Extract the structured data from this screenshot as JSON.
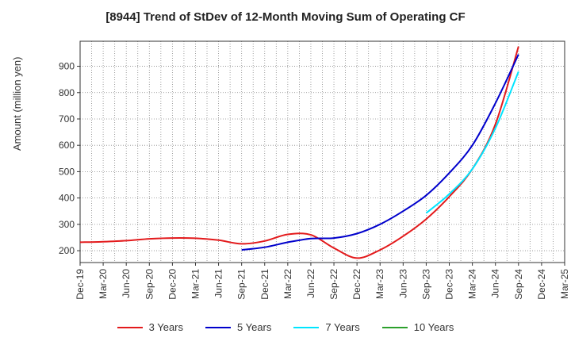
{
  "chart_data": {
    "type": "line",
    "title": "[8944]  Trend of StDev of 12-Month Moving Sum of Operating CF",
    "ylabel": "Amount (million yen)",
    "xlabel": "",
    "ylim": [
      155,
      995
    ],
    "yticks": [
      200,
      300,
      400,
      500,
      600,
      700,
      800,
      900
    ],
    "categories": [
      "Dec-19",
      "Mar-20",
      "Jun-20",
      "Sep-20",
      "Dec-20",
      "Mar-21",
      "Jun-21",
      "Sep-21",
      "Dec-21",
      "Mar-22",
      "Jun-22",
      "Sep-22",
      "Dec-22",
      "Mar-23",
      "Jun-23",
      "Sep-23",
      "Dec-23",
      "Mar-24",
      "Jun-24",
      "Sep-24",
      "Dec-24",
      "Mar-25"
    ],
    "grid": true,
    "legend_position": "bottom",
    "series": [
      {
        "name": "3 Years",
        "color": "#e31a1c",
        "values": [
          232,
          234,
          238,
          245,
          248,
          247,
          240,
          226,
          237,
          262,
          260,
          210,
          172,
          203,
          255,
          320,
          405,
          510,
          680,
          975,
          null,
          null
        ]
      },
      {
        "name": "5 Years",
        "color": "#0000cc",
        "values": [
          null,
          null,
          null,
          null,
          null,
          null,
          null,
          203,
          213,
          232,
          246,
          248,
          265,
          300,
          350,
          410,
          495,
          600,
          760,
          945,
          null,
          null
        ]
      },
      {
        "name": "7 Years",
        "color": "#00e5ff",
        "values": [
          null,
          null,
          null,
          null,
          null,
          null,
          null,
          null,
          null,
          null,
          null,
          null,
          null,
          null,
          null,
          343,
          415,
          510,
          665,
          880,
          null,
          null
        ]
      },
      {
        "name": "10 Years",
        "color": "#2ca02c",
        "values": [
          null,
          null,
          null,
          null,
          null,
          null,
          null,
          null,
          null,
          null,
          null,
          null,
          null,
          null,
          null,
          null,
          null,
          null,
          null,
          null,
          null,
          null
        ]
      }
    ]
  }
}
